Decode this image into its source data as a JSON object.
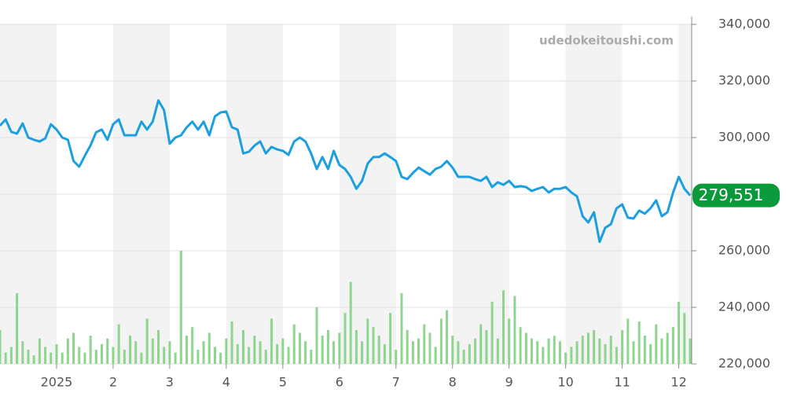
{
  "chart_data": {
    "type": "line",
    "watermark": "udedokeitoushi.com",
    "categories": [
      null,
      null,
      null,
      null,
      null,
      null,
      null,
      null,
      null,
      null,
      "2025",
      null,
      null,
      null,
      null,
      null,
      null,
      null,
      null,
      null,
      "2",
      null,
      null,
      null,
      null,
      null,
      null,
      null,
      null,
      null,
      "3",
      null,
      null,
      null,
      null,
      null,
      null,
      null,
      null,
      null,
      "4",
      null,
      null,
      null,
      null,
      null,
      null,
      null,
      null,
      null,
      "5",
      null,
      null,
      null,
      null,
      null,
      null,
      null,
      null,
      null,
      "6",
      null,
      null,
      null,
      null,
      null,
      null,
      null,
      null,
      null,
      "7",
      null,
      null,
      null,
      null,
      null,
      null,
      null,
      null,
      null,
      "8",
      null,
      null,
      null,
      null,
      null,
      null,
      null,
      null,
      null,
      "9",
      null,
      null,
      null,
      null,
      null,
      null,
      null,
      null,
      null,
      "10",
      null,
      null,
      null,
      null,
      null,
      null,
      null,
      null,
      null,
      "11",
      null,
      null,
      null,
      null,
      null,
      null,
      null,
      null,
      null,
      "12",
      null,
      null
    ],
    "series": [
      {
        "color": "#1a9fe0",
        "values": [
          304200,
          306400,
          302000,
          301400,
          305000,
          300000,
          299200,
          298600,
          299700,
          304700,
          302800,
          300000,
          299200,
          291700,
          289700,
          293600,
          297200,
          301900,
          302800,
          299200,
          304700,
          306400,
          300800,
          300800,
          300800,
          305600,
          302800,
          305600,
          313100,
          309700,
          297800,
          300000,
          300800,
          303600,
          305600,
          302800,
          305600,
          300800,
          307500,
          308900,
          309200,
          303600,
          302800,
          294400,
          295000,
          297200,
          298600,
          294400,
          296700,
          295800,
          295300,
          293900,
          298600,
          300000,
          298600,
          294400,
          288900,
          293100,
          288900,
          295300,
          290300,
          288900,
          286100,
          281900,
          284700,
          290800,
          293100,
          293100,
          294400,
          293100,
          291700,
          286100,
          285300,
          287500,
          289400,
          288100,
          286900,
          288900,
          289700,
          291700,
          289400,
          286100,
          286100,
          286100,
          285300,
          284700,
          286100,
          282500,
          284200,
          283300,
          284700,
          282500,
          282800,
          282500,
          281100,
          281900,
          282500,
          280600,
          281900,
          281900,
          282500,
          280600,
          279200,
          272200,
          270000,
          273600,
          263100,
          268100,
          269400,
          275000,
          276400,
          271700,
          271400,
          274200,
          273100,
          275000,
          277800,
          272200,
          273600,
          280600,
          286100,
          281900,
          279551
        ]
      },
      {
        "color": "#8fd48f",
        "values": [
          232000,
          224000,
          226000,
          245000,
          228000,
          225000,
          223000,
          229000,
          226000,
          224000,
          227000,
          224000,
          229000,
          231000,
          226000,
          224000,
          230000,
          225000,
          227000,
          229000,
          226000,
          234000,
          225000,
          230000,
          228000,
          224000,
          236000,
          229000,
          232000,
          226000,
          228000,
          224000,
          260000,
          230000,
          233000,
          225000,
          228000,
          231000,
          226000,
          224000,
          229000,
          235000,
          227000,
          232000,
          226000,
          230000,
          228000,
          225000,
          236000,
          227000,
          229000,
          226000,
          234000,
          231000,
          228000,
          225000,
          240000,
          230000,
          232000,
          228000,
          231000,
          238000,
          249000,
          232000,
          228000,
          236000,
          233000,
          230000,
          227000,
          238000,
          225000,
          245000,
          232000,
          228000,
          229000,
          234000,
          231000,
          226000,
          236000,
          239000,
          230000,
          228000,
          225000,
          227000,
          229000,
          234000,
          232000,
          242000,
          229000,
          246000,
          236000,
          244000,
          233000,
          231000,
          229000,
          228000,
          226000,
          229000,
          230000,
          228000,
          224000,
          226000,
          228000,
          230000,
          231000,
          232000,
          229000,
          227000,
          230000,
          226000,
          232000,
          236000,
          228000,
          235000,
          230000,
          227000,
          234000,
          229000,
          231000,
          233000,
          242000,
          238000,
          229000
        ]
      }
    ],
    "ylim": [
      220000,
      340000
    ],
    "yticks": [
      {
        "value": 220000,
        "label": "220,000"
      },
      {
        "value": 240000,
        "label": "240,000"
      },
      {
        "value": 260000,
        "label": "260,000"
      },
      {
        "value": 280000,
        "label": "280,000"
      },
      {
        "value": 300000,
        "label": "300,000"
      },
      {
        "value": 320000,
        "label": "320,000"
      },
      {
        "value": 340000,
        "label": "340,000"
      }
    ],
    "grid": true,
    "band_color": "#f3f3f3",
    "last_price": {
      "value": 279551,
      "label": "279,551",
      "color": "#0a9a3c"
    }
  }
}
